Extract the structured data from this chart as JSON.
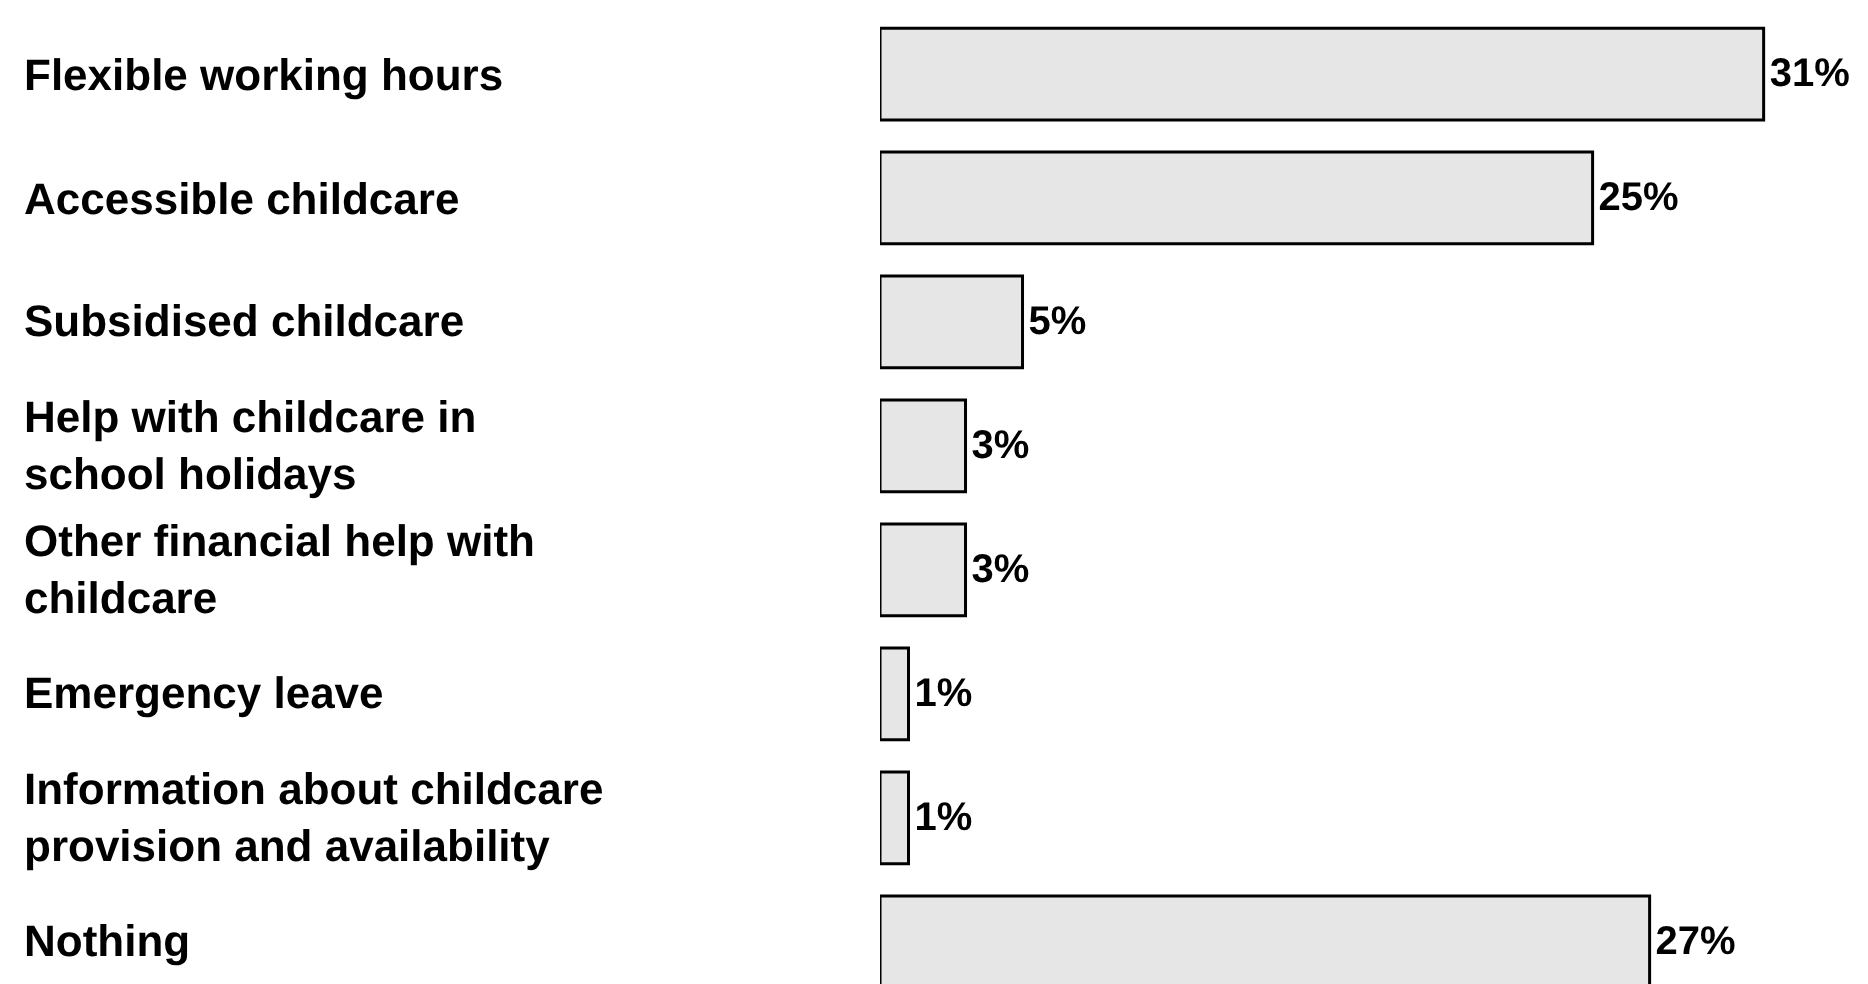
{
  "chart_data": {
    "type": "bar",
    "orientation": "horizontal",
    "categories": [
      "Flexible working hours",
      "Accessible childcare",
      "Subsidised childcare",
      "Help with childcare in school holidays",
      "Other financial help with childcare",
      "Emergency leave",
      "Information about childcare provision and availability",
      "Nothing"
    ],
    "values": [
      31,
      25,
      5,
      3,
      3,
      1,
      1,
      27
    ],
    "value_labels": [
      "31%",
      "25%",
      "5%",
      "3%",
      "3%",
      "1%",
      "1%",
      "27%"
    ],
    "color": "#e6e6e6"
  }
}
